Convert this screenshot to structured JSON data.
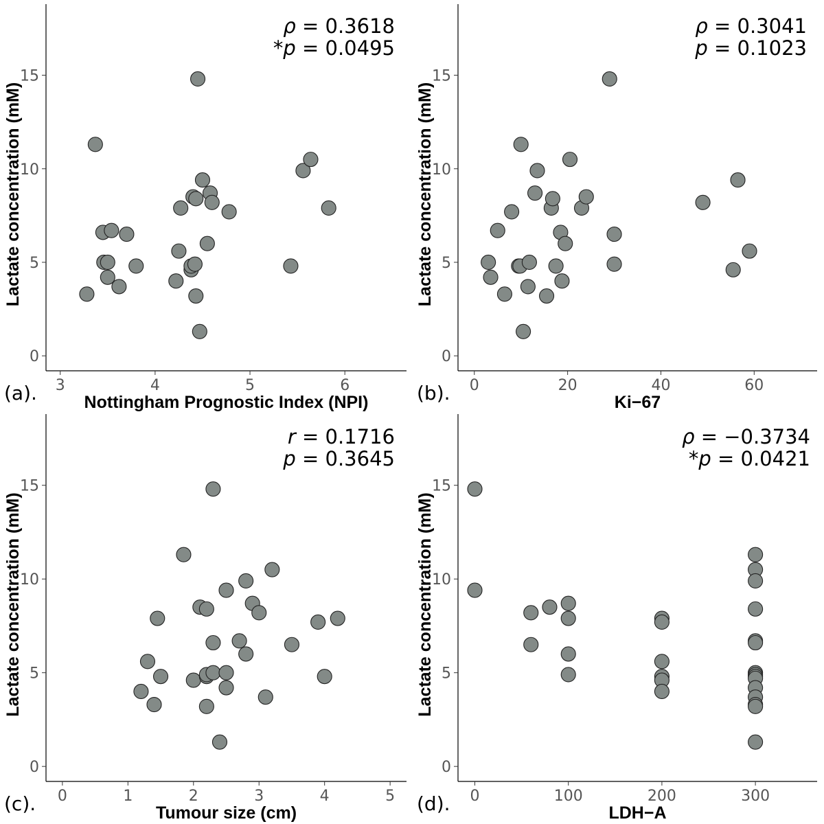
{
  "chart_data": [
    {
      "panel": "(a).",
      "type": "scatter",
      "xlabel": "Nottingham Prognostic Index (NPI)",
      "ylabel": "Lactate concentration (mM)",
      "xlim": [
        2.85,
        6.65
      ],
      "ylim": [
        -0.8,
        18.8
      ],
      "xticks": [
        3,
        4,
        5,
        6
      ],
      "yticks": [
        0,
        5,
        10,
        15
      ],
      "stats": [
        {
          "prefix": "",
          "symbol": "ρ",
          "value": " = 0.3618"
        },
        {
          "prefix": "*",
          "symbol": "p",
          "value": " = 0.0495"
        }
      ],
      "points": [
        [
          3.28,
          3.3
        ],
        [
          3.37,
          11.3
        ],
        [
          3.45,
          6.6
        ],
        [
          3.46,
          5.0
        ],
        [
          3.5,
          4.2
        ],
        [
          3.5,
          5.0
        ],
        [
          3.54,
          6.7
        ],
        [
          3.62,
          3.7
        ],
        [
          3.7,
          6.5
        ],
        [
          3.8,
          4.8
        ],
        [
          4.22,
          4.0
        ],
        [
          4.25,
          5.6
        ],
        [
          4.27,
          7.9
        ],
        [
          4.38,
          4.6
        ],
        [
          4.38,
          4.8
        ],
        [
          4.4,
          8.5
        ],
        [
          4.42,
          4.9
        ],
        [
          4.43,
          8.4
        ],
        [
          4.43,
          3.2
        ],
        [
          4.45,
          14.8
        ],
        [
          4.47,
          1.3
        ],
        [
          4.5,
          9.4
        ],
        [
          4.55,
          6.0
        ],
        [
          4.58,
          8.7
        ],
        [
          4.6,
          8.2
        ],
        [
          4.78,
          7.7
        ],
        [
          5.43,
          4.8
        ],
        [
          5.56,
          9.9
        ],
        [
          5.64,
          10.5
        ],
        [
          5.83,
          7.9
        ]
      ]
    },
    {
      "panel": "(b).",
      "type": "scatter",
      "xlabel": "Ki−67",
      "ylabel": "Lactate concentration (mM)",
      "xlim": [
        -3.5,
        73.5
      ],
      "ylim": [
        -0.8,
        18.8
      ],
      "xticks": [
        0,
        20,
        40,
        60
      ],
      "yticks": [
        0,
        5,
        10,
        15
      ],
      "stats": [
        {
          "prefix": "",
          "symbol": "ρ",
          "value": " = 0.3041"
        },
        {
          "prefix": "",
          "symbol": "p",
          "value": " = 0.1023"
        }
      ],
      "points": [
        [
          3.0,
          5.0
        ],
        [
          3.5,
          4.2
        ],
        [
          5.0,
          6.7
        ],
        [
          6.5,
          3.3
        ],
        [
          8.0,
          7.7
        ],
        [
          9.5,
          4.8
        ],
        [
          9.8,
          4.8
        ],
        [
          10.0,
          11.3
        ],
        [
          10.5,
          1.3
        ],
        [
          11.5,
          3.7
        ],
        [
          11.8,
          5.0
        ],
        [
          13.0,
          8.7
        ],
        [
          13.5,
          9.9
        ],
        [
          15.5,
          3.2
        ],
        [
          16.5,
          7.9
        ],
        [
          16.8,
          8.4
        ],
        [
          17.5,
          4.8
        ],
        [
          18.5,
          6.6
        ],
        [
          18.8,
          4.0
        ],
        [
          19.5,
          6.0
        ],
        [
          20.5,
          10.5
        ],
        [
          23.0,
          7.9
        ],
        [
          24.0,
          8.5
        ],
        [
          29.0,
          14.8
        ],
        [
          30.0,
          6.5
        ],
        [
          30.0,
          4.9
        ],
        [
          49.0,
          8.2
        ],
        [
          55.5,
          4.6
        ],
        [
          56.5,
          9.4
        ],
        [
          59.0,
          5.6
        ]
      ]
    },
    {
      "panel": "(c).",
      "type": "scatter",
      "xlabel": "Tumour size (cm)",
      "ylabel": "Lactate concentration (mM)",
      "xlim": [
        -0.25,
        5.25
      ],
      "ylim": [
        -0.8,
        18.8
      ],
      "xticks": [
        0,
        1,
        2,
        3,
        4,
        5
      ],
      "yticks": [
        0,
        5,
        10,
        15
      ],
      "stats": [
        {
          "prefix": "",
          "symbol": "r",
          "value": " = 0.1716"
        },
        {
          "prefix": "",
          "symbol": "p",
          "value": " = 0.3645"
        }
      ],
      "points": [
        [
          1.2,
          4.0
        ],
        [
          1.3,
          5.6
        ],
        [
          1.4,
          3.3
        ],
        [
          1.45,
          7.9
        ],
        [
          1.5,
          4.8
        ],
        [
          1.85,
          11.3
        ],
        [
          2.0,
          4.6
        ],
        [
          2.1,
          8.5
        ],
        [
          2.2,
          3.2
        ],
        [
          2.2,
          4.8
        ],
        [
          2.2,
          4.9
        ],
        [
          2.2,
          8.4
        ],
        [
          2.3,
          5.0
        ],
        [
          2.3,
          6.6
        ],
        [
          2.3,
          14.8
        ],
        [
          2.4,
          1.3
        ],
        [
          2.5,
          4.2
        ],
        [
          2.5,
          5.0
        ],
        [
          2.5,
          9.4
        ],
        [
          2.7,
          6.7
        ],
        [
          2.8,
          6.0
        ],
        [
          2.8,
          9.9
        ],
        [
          2.9,
          8.7
        ],
        [
          3.0,
          8.2
        ],
        [
          3.1,
          3.7
        ],
        [
          3.2,
          10.5
        ],
        [
          3.5,
          6.5
        ],
        [
          3.9,
          7.7
        ],
        [
          4.0,
          4.8
        ],
        [
          4.2,
          7.9
        ]
      ]
    },
    {
      "panel": "(d).",
      "type": "scatter",
      "xlabel": "LDH−A",
      "ylabel": "Lactate concentration (mM)",
      "xlim": [
        -18,
        366
      ],
      "ylim": [
        -0.8,
        18.8
      ],
      "xticks": [
        0,
        100,
        200,
        300
      ],
      "yticks": [
        0,
        5,
        10,
        15
      ],
      "stats": [
        {
          "prefix": "",
          "symbol": "ρ",
          "value": " = −0.3734"
        },
        {
          "prefix": "*",
          "symbol": "p",
          "value": " = 0.0421"
        }
      ],
      "points": [
        [
          0,
          14.8
        ],
        [
          0,
          9.4
        ],
        [
          60,
          8.2
        ],
        [
          60,
          6.5
        ],
        [
          80,
          8.5
        ],
        [
          100,
          8.7
        ],
        [
          100,
          7.9
        ],
        [
          100,
          6.0
        ],
        [
          100,
          4.9
        ],
        [
          200,
          7.9
        ],
        [
          200,
          7.7
        ],
        [
          200,
          5.6
        ],
        [
          200,
          4.8
        ],
        [
          200,
          4.6
        ],
        [
          200,
          4.0
        ],
        [
          300,
          11.3
        ],
        [
          300,
          10.5
        ],
        [
          300,
          9.9
        ],
        [
          300,
          8.4
        ],
        [
          300,
          6.7
        ],
        [
          300,
          6.6
        ],
        [
          300,
          5.0
        ],
        [
          300,
          4.9
        ],
        [
          300,
          4.8
        ],
        [
          300,
          4.7
        ],
        [
          300,
          4.2
        ],
        [
          300,
          3.7
        ],
        [
          300,
          3.3
        ],
        [
          300,
          3.2
        ],
        [
          300,
          1.3
        ]
      ]
    }
  ]
}
